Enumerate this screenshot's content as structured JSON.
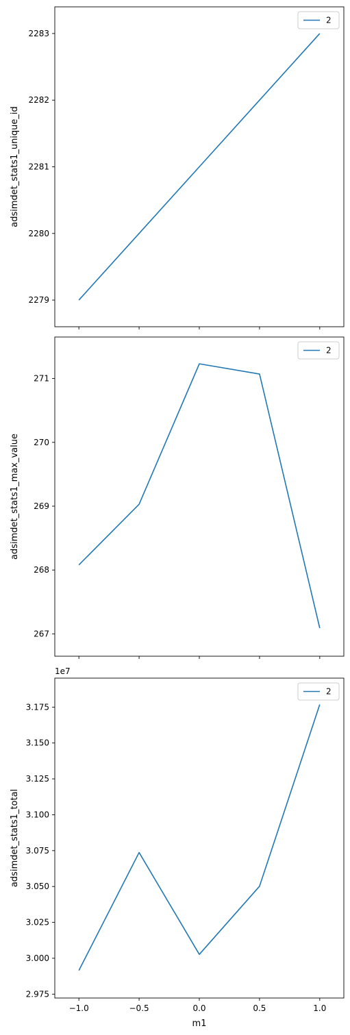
{
  "chart_data": [
    {
      "type": "line",
      "x": [
        -1.0,
        -0.5,
        0.0,
        0.5,
        1.0
      ],
      "series": [
        {
          "name": "2",
          "values": [
            2279,
            2280,
            2281,
            2282,
            2283
          ]
        }
      ],
      "xlabel": "",
      "ylabel": "adsimdet_stats1_unique_id",
      "xlim": [
        -1.2,
        1.2
      ],
      "ylim": [
        2278.6,
        2283.4
      ],
      "yticks": [
        2279,
        2280,
        2281,
        2282,
        2283
      ],
      "yticklabels": [
        "2279",
        "2280",
        "2281",
        "2282",
        "2283"
      ],
      "xticks": [
        -1.0,
        -0.5,
        0.0,
        0.5,
        1.0
      ],
      "xticklabels": [],
      "y_offset_label": "",
      "legend": "top-right",
      "grid": false,
      "color": "#1f77b4"
    },
    {
      "type": "line",
      "x": [
        -1.0,
        -0.5,
        0.0,
        0.5,
        1.0
      ],
      "series": [
        {
          "name": "2",
          "values": [
            268.08,
            269.03,
            271.23,
            271.07,
            267.09
          ]
        }
      ],
      "xlabel": "",
      "ylabel": "adsimdet_stats1_max_value",
      "xlim": [
        -1.2,
        1.2
      ],
      "ylim": [
        266.65,
        271.65
      ],
      "yticks": [
        267,
        268,
        269,
        270,
        271
      ],
      "yticklabels": [
        "267",
        "268",
        "269",
        "270",
        "271"
      ],
      "xticks": [
        -1.0,
        -0.5,
        0.0,
        0.5,
        1.0
      ],
      "xticklabels": [],
      "y_offset_label": "",
      "legend": "top-right",
      "grid": false,
      "color": "#1f77b4"
    },
    {
      "type": "line",
      "x": [
        -1.0,
        -0.5,
        0.0,
        0.5,
        1.0
      ],
      "series": [
        {
          "name": "2",
          "values": [
            2.9915,
            3.0737,
            3.0027,
            3.0502,
            3.1768
          ]
        }
      ],
      "xlabel": "m1",
      "ylabel": "adsimdet_stats1_total",
      "xlim": [
        -1.2,
        1.2
      ],
      "ylim": [
        2.9723,
        3.1952
      ],
      "yticks": [
        2.975,
        3.0,
        3.025,
        3.05,
        3.075,
        3.1,
        3.125,
        3.15,
        3.175
      ],
      "yticklabels": [
        "2.975",
        "3.000",
        "3.025",
        "3.050",
        "3.075",
        "3.100",
        "3.125",
        "3.150",
        "3.175"
      ],
      "xticks": [
        -1.0,
        -0.5,
        0.0,
        0.5,
        1.0
      ],
      "xticklabels": [
        "−1.0",
        "−0.5",
        "0.0",
        "0.5",
        "1.0"
      ],
      "y_offset_label": "1e7",
      "legend": "top-right",
      "grid": false,
      "color": "#1f77b4"
    }
  ]
}
